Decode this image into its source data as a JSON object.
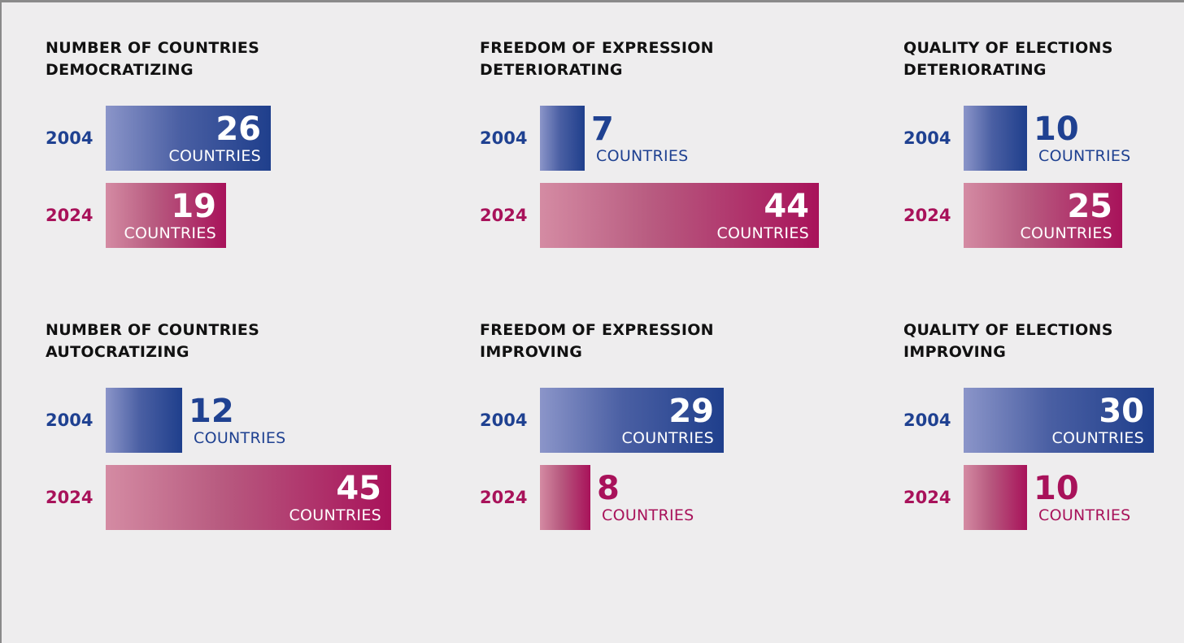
{
  "colors": {
    "y2004": "#1f4191",
    "y2024": "#a8125a",
    "background": "#eeedee"
  },
  "chart_data": [
    {
      "type": "bar",
      "title": "NUMBER OF COUNTRIES\nDEMOCRATIZING",
      "categories": [
        "2004",
        "2024"
      ],
      "values": [
        26,
        19
      ],
      "value_labels": [
        "26",
        "19"
      ],
      "unit": "COUNTRIES"
    },
    {
      "type": "bar",
      "title": "FREEDOM OF EXPRESSION\nDETERIORATING",
      "categories": [
        "2004",
        "2024"
      ],
      "values": [
        7,
        44
      ],
      "value_labels": [
        "7",
        "44"
      ],
      "unit": "COUNTRIES"
    },
    {
      "type": "bar",
      "title": "QUALITY OF ELECTIONS\nDETERIORATING",
      "categories": [
        "2004",
        "2024"
      ],
      "values": [
        10,
        25
      ],
      "value_labels": [
        "10",
        "25"
      ],
      "unit": "COUNTRIES"
    },
    {
      "type": "bar",
      "title": "NUMBER OF COUNTRIES\nAUTOCRATIZING",
      "categories": [
        "2004",
        "2024"
      ],
      "values": [
        12,
        45
      ],
      "value_labels": [
        "12",
        "45"
      ],
      "unit": "COUNTRIES"
    },
    {
      "type": "bar",
      "title": "FREEDOM OF EXPRESSION\nIMPROVING",
      "categories": [
        "2004",
        "2024"
      ],
      "values": [
        29,
        8
      ],
      "value_labels": [
        "29",
        "8"
      ],
      "unit": "COUNTRIES"
    },
    {
      "type": "bar",
      "title": "QUALITY OF ELECTIONS\nIMPROVING",
      "categories": [
        "2004",
        "2024"
      ],
      "values": [
        30,
        10
      ],
      "value_labels": [
        "30",
        "10"
      ],
      "unit": "COUNTRIES"
    }
  ]
}
